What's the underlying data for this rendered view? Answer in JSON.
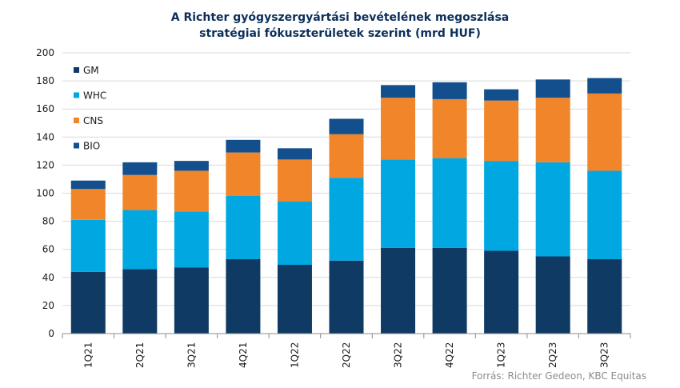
{
  "chart_data": {
    "type": "bar",
    "stacked": true,
    "title_line1": "A Richter gyógyszergyártási bevételének megoszlása",
    "title_line2": "stratégiai fókuszterületek szerint (mrd HUF)",
    "categories": [
      "1Q21",
      "2Q21",
      "3Q21",
      "4Q21",
      "1Q22",
      "2Q22",
      "3Q22",
      "4Q22",
      "1Q23",
      "2Q23",
      "3Q23"
    ],
    "series": [
      {
        "name": "GM",
        "color": "#0e3a63",
        "values": [
          44,
          46,
          47,
          53,
          49,
          52,
          61,
          61,
          59,
          55,
          53
        ]
      },
      {
        "name": "WHC",
        "color": "#00a7e1",
        "values": [
          37,
          42,
          40,
          45,
          45,
          59,
          63,
          64,
          64,
          67,
          63
        ]
      },
      {
        "name": "CNS",
        "color": "#f0852a",
        "values": [
          22,
          25,
          29,
          31,
          30,
          31,
          44,
          42,
          43,
          46,
          55
        ]
      },
      {
        "name": "BIO",
        "color": "#124f8c",
        "values": [
          6,
          9,
          7,
          9,
          8,
          11,
          9,
          12,
          8,
          13,
          11
        ]
      }
    ],
    "ylim": [
      0,
      200
    ],
    "yticks": [
      0,
      20,
      40,
      60,
      80,
      100,
      120,
      140,
      160,
      180,
      200
    ],
    "grid": true,
    "legend_position": "top-left",
    "source": "Forrás: Richter Gedeon, KBC Equitas"
  }
}
